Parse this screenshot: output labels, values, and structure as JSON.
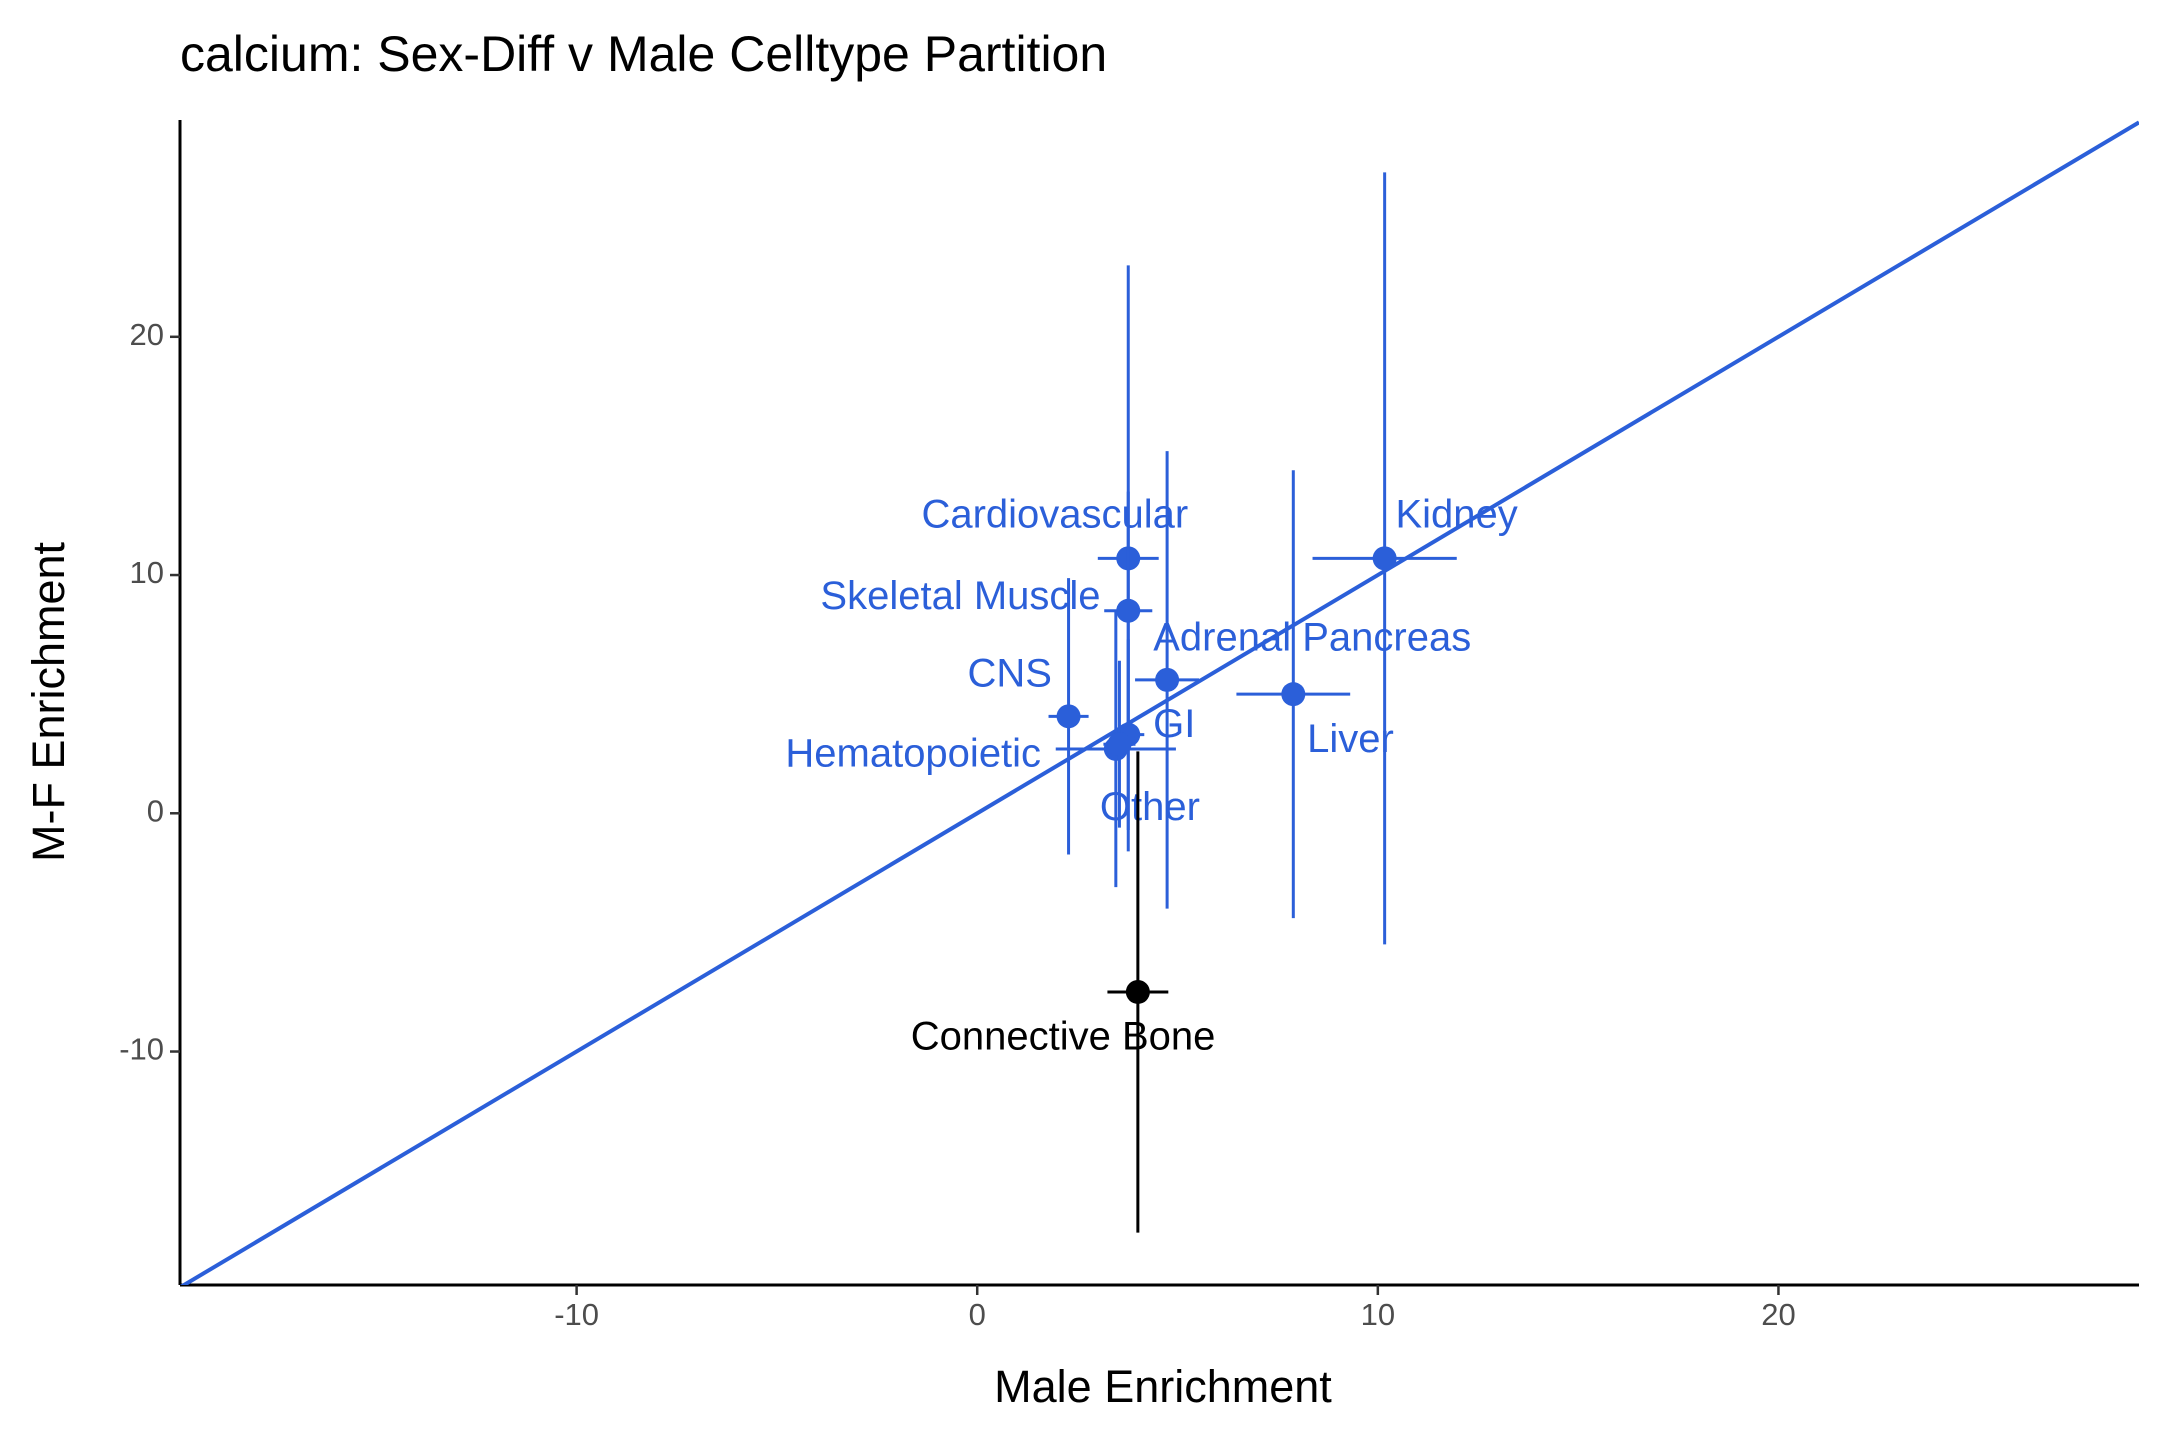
{
  "chart_data": {
    "type": "scatter",
    "title": "calcium: Sex-Diff v Male Celltype Partition",
    "x_label": "Male Enrichment",
    "y_label": "M-F Enrichment",
    "xlim": [
      -19.9,
      29.0
    ],
    "ylim": [
      -19.8,
      29.1
    ],
    "xticks": [
      -10,
      0,
      10,
      20
    ],
    "yticks": [
      -10,
      0,
      10,
      20
    ],
    "reference_line": {
      "slope": 1,
      "intercept": 0,
      "color": "#2b5fd9"
    },
    "points": [
      {
        "label": "Cardiovascular",
        "x": 3.77,
        "y": 10.7,
        "xerr": 0.76,
        "yerr": 12.3,
        "color": "#2b5fd9"
      },
      {
        "label": "Skeletal Muscle",
        "x": 3.77,
        "y": 8.5,
        "xerr": 0.6,
        "yerr": 5.0,
        "color": "#2b5fd9"
      },
      {
        "label": "Adrenal Pancreas",
        "x": 4.74,
        "y": 5.6,
        "xerr": 0.8,
        "yerr": 9.6,
        "color": "#2b5fd9"
      },
      {
        "label": "CNS",
        "x": 2.28,
        "y": 4.07,
        "xerr": 0.5,
        "yerr": 5.8,
        "color": "#2b5fd9"
      },
      {
        "label": "GI",
        "x": 3.77,
        "y": 3.3,
        "xerr": 0.4,
        "yerr": 4.0,
        "color": "#2b5fd9"
      },
      {
        "label": "Hematopoietic",
        "x": 3.46,
        "y": 2.7,
        "xerr": 1.5,
        "yerr": 5.8,
        "color": "#2b5fd9"
      },
      {
        "label": "Other",
        "x": 3.55,
        "y": 2.9,
        "xerr": 0.4,
        "yerr": 3.5,
        "color": "#2b5fd9"
      },
      {
        "label": "Liver",
        "x": 7.89,
        "y": 5.0,
        "xerr": 1.42,
        "yerr": 9.4,
        "color": "#2b5fd9"
      },
      {
        "label": "Kidney",
        "x": 10.17,
        "y": 10.7,
        "xerr": 1.8,
        "yerr": 16.2,
        "color": "#2b5fd9"
      },
      {
        "label": "Connective Bone",
        "x": 4.01,
        "y": -7.5,
        "xerr": 0.76,
        "yerr": 10.1,
        "color": "#000000"
      }
    ]
  }
}
